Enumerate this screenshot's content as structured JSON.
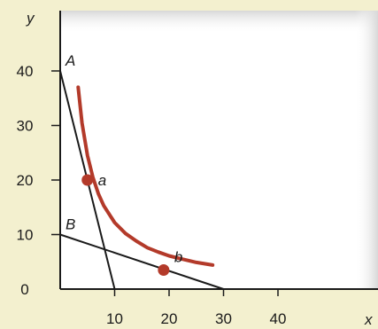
{
  "chart_data": {
    "type": "line",
    "title": "",
    "xlabel": "x",
    "ylabel": "y",
    "xlim": [
      0,
      55
    ],
    "ylim": [
      0,
      48
    ],
    "grid": false,
    "x_ticks": [
      10,
      20,
      30,
      40
    ],
    "y_ticks": [
      0,
      10,
      20,
      30,
      40
    ],
    "colors": {
      "background": "#f3f0cf",
      "plot_area": "#ffffff",
      "curve": "#b33a2a",
      "lines": "#1a1a1a"
    },
    "series": [
      {
        "kind": "curve",
        "x": [
          3.3,
          4.0,
          5.0,
          6.0,
          7.0,
          8.0,
          10.0,
          12.0,
          14.0,
          16.0,
          18.0,
          20.0,
          22.0,
          25.0,
          28.0
        ],
        "y": [
          37,
          30.5,
          24.5,
          20.5,
          17.5,
          15.3,
          12.2,
          10.2,
          8.8,
          7.6,
          6.8,
          6.1,
          5.6,
          4.9,
          4.4
        ]
      },
      {
        "kind": "budget-line",
        "label": "A",
        "x": [
          0,
          10
        ],
        "y": [
          40,
          0
        ]
      },
      {
        "kind": "budget-line",
        "label": "B",
        "x": [
          0,
          30
        ],
        "y": [
          10,
          0
        ]
      }
    ],
    "points": [
      {
        "label": "a",
        "x": 5,
        "y": 20
      },
      {
        "label": "b",
        "x": 19,
        "y": 3.5
      }
    ]
  }
}
